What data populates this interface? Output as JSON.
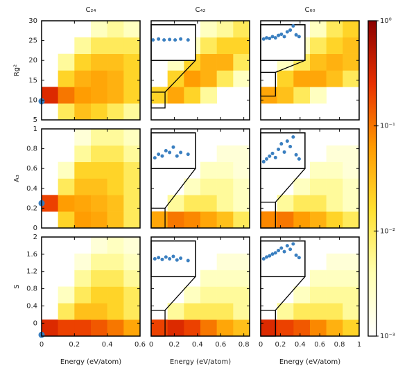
{
  "chart_data": {
    "type": "heatmap",
    "xlabel": "Energy (eV/atom)",
    "colormap": [
      "#ffffff",
      "#ffffb0",
      "#ffe030",
      "#ff9a00",
      "#e83000",
      "#8b0000"
    ],
    "point_color": "#3a7fc0",
    "colorbar": {
      "log": true,
      "lim": [
        0.001,
        1
      ],
      "ticks": [
        {
          "value": 1,
          "label": "10⁰"
        },
        {
          "value": 0.1,
          "label": "10⁻¹"
        },
        {
          "value": 0.01,
          "label": "10⁻²"
        },
        {
          "value": 0.001,
          "label": "10⁻³"
        }
      ]
    },
    "columns": [
      {
        "title": "C₂₄",
        "xlim": [
          0,
          0.6
        ],
        "xticks": [
          0,
          0.2,
          0.4,
          0.6
        ]
      },
      {
        "title": "C₄₂",
        "xlim": [
          0,
          0.85
        ],
        "xticks": [
          0,
          0.2,
          0.4,
          0.6,
          0.8
        ]
      },
      {
        "title": "C₆₀",
        "xlim": [
          0,
          1
        ],
        "xticks": [
          0,
          0.2,
          0.4,
          0.6,
          0.8,
          1
        ]
      }
    ],
    "rows": [
      {
        "ylabel": "Rg²",
        "ylim": [
          5,
          30
        ],
        "yticks": [
          5,
          10,
          15,
          20,
          25,
          30
        ],
        "panels": [
          {
            "z": [
              [
                null,
                0.01,
                0.03,
                0.02,
                0.01,
                0.005
              ],
              [
                0.3,
                0.1,
                0.06,
                0.05,
                0.04,
                0.02
              ],
              [
                null,
                0.02,
                0.04,
                0.05,
                0.04,
                0.02
              ],
              [
                null,
                0.005,
                0.02,
                0.03,
                0.03,
                0.02
              ],
              [
                null,
                null,
                0.005,
                0.01,
                0.01,
                0.01
              ],
              [
                null,
                null,
                null,
                0.003,
                0.005,
                0.003
              ]
            ],
            "points": [
              [
                0,
                9.7
              ]
            ]
          },
          {
            "z": [
              [
                null,
                null,
                null,
                null,
                null,
                null
              ],
              [
                0.02,
                0.05,
                0.02,
                0.005,
                null,
                null
              ],
              [
                null,
                0.02,
                0.06,
                0.04,
                0.01,
                0.003
              ],
              [
                null,
                0.003,
                0.02,
                0.04,
                0.04,
                0.01
              ],
              [
                null,
                null,
                0.003,
                0.01,
                0.02,
                0.02
              ],
              [
                null,
                null,
                null,
                0.003,
                0.005,
                0.01
              ]
            ],
            "points": [],
            "inset": {
              "xlim": [
                0,
                0.12
              ],
              "ylim": [
                8,
                12
              ],
              "points": [
                [
                  0.005,
                  10.3
                ],
                [
                  0.02,
                  10.4
                ],
                [
                  0.035,
                  10.3
                ],
                [
                  0.05,
                  10.35
                ],
                [
                  0.065,
                  10.3
                ],
                [
                  0.08,
                  10.4
                ],
                [
                  0.1,
                  10.3
                ]
              ]
            }
          },
          {
            "z": [
              [
                null,
                null,
                null,
                null,
                null,
                null
              ],
              [
                0.05,
                0.03,
                0.01,
                0.003,
                null,
                null
              ],
              [
                null,
                0.02,
                0.05,
                0.05,
                0.03,
                0.01
              ],
              [
                null,
                0.003,
                0.01,
                0.03,
                0.04,
                0.03
              ],
              [
                null,
                null,
                0.003,
                0.01,
                0.02,
                0.03
              ],
              [
                null,
                null,
                null,
                0.003,
                0.01,
                0.02
              ]
            ],
            "points": [],
            "inset": {
              "xlim": [
                0,
                0.15
              ],
              "ylim": [
                11,
                17
              ],
              "points": [
                [
                  0.01,
                  14.6
                ],
                [
                  0.02,
                  14.8
                ],
                [
                  0.03,
                  14.7
                ],
                [
                  0.04,
                  15.0
                ],
                [
                  0.05,
                  14.8
                ],
                [
                  0.06,
                  15.2
                ],
                [
                  0.07,
                  15.4
                ],
                [
                  0.08,
                  15.0
                ],
                [
                  0.09,
                  15.8
                ],
                [
                  0.1,
                  16.1
                ],
                [
                  0.11,
                  16.8
                ],
                [
                  0.12,
                  15.3
                ],
                [
                  0.13,
                  15.0
                ]
              ]
            }
          }
        ]
      },
      {
        "ylabel": "A₃",
        "ylim": [
          0,
          1
        ],
        "yticks": [
          0,
          0.2,
          0.4,
          0.6,
          0.8,
          1
        ],
        "panels": [
          {
            "z": [
              [
                null,
                0.02,
                0.06,
                0.05,
                0.03,
                0.01
              ],
              [
                0.2,
                0.06,
                0.05,
                0.04,
                0.03,
                0.01
              ],
              [
                null,
                0.01,
                0.03,
                0.03,
                0.02,
                0.01
              ],
              [
                null,
                0.003,
                0.02,
                0.02,
                0.02,
                0.01
              ],
              [
                null,
                null,
                0.005,
                0.01,
                0.01,
                0.005
              ],
              [
                null,
                null,
                0.002,
                0.005,
                0.005,
                0.003
              ]
            ],
            "points": [
              [
                0,
                0.25
              ]
            ]
          },
          {
            "z": [
              [
                0.05,
                0.1,
                0.08,
                0.05,
                0.03,
                0.01
              ],
              [
                null,
                0.005,
                0.01,
                0.01,
                0.005,
                0.003
              ],
              [
                null,
                null,
                0.003,
                0.005,
                0.005,
                0.003
              ],
              [
                null,
                null,
                null,
                0.003,
                0.003,
                0.002
              ],
              [
                null,
                null,
                null,
                null,
                0.002,
                0.002
              ],
              [
                null,
                null,
                null,
                null,
                null,
                null
              ]
            ],
            "points": [],
            "inset": {
              "xlim": [
                0,
                0.12
              ],
              "ylim": [
                0,
                0.2
              ],
              "points": [
                [
                  0.01,
                  0.06
                ],
                [
                  0.02,
                  0.08
                ],
                [
                  0.03,
                  0.07
                ],
                [
                  0.04,
                  0.1
                ],
                [
                  0.05,
                  0.09
                ],
                [
                  0.06,
                  0.12
                ],
                [
                  0.07,
                  0.07
                ],
                [
                  0.08,
                  0.09
                ],
                [
                  0.1,
                  0.08
                ]
              ]
            }
          },
          {
            "z": [
              [
                0.08,
                0.1,
                0.06,
                0.04,
                0.02,
                0.01
              ],
              [
                null,
                0.005,
                0.01,
                0.01,
                0.005,
                0.003
              ],
              [
                null,
                null,
                0.003,
                0.005,
                0.005,
                0.003
              ],
              [
                null,
                null,
                null,
                0.003,
                0.003,
                0.002
              ],
              [
                null,
                null,
                null,
                null,
                0.002,
                0.002
              ],
              [
                null,
                null,
                null,
                null,
                null,
                null
              ]
            ],
            "points": [],
            "inset": {
              "xlim": [
                0,
                0.15
              ],
              "ylim": [
                0,
                0.26
              ],
              "points": [
                [
                  0.01,
                  0.05
                ],
                [
                  0.02,
                  0.07
                ],
                [
                  0.03,
                  0.09
                ],
                [
                  0.04,
                  0.11
                ],
                [
                  0.05,
                  0.08
                ],
                [
                  0.06,
                  0.14
                ],
                [
                  0.07,
                  0.18
                ],
                [
                  0.08,
                  0.12
                ],
                [
                  0.09,
                  0.2
                ],
                [
                  0.1,
                  0.16
                ],
                [
                  0.11,
                  0.23
                ],
                [
                  0.12,
                  0.1
                ],
                [
                  0.13,
                  0.07
                ]
              ]
            }
          }
        ]
      },
      {
        "ylabel": "S",
        "ylim": [
          -0.3,
          2
        ],
        "yticks": [
          0,
          0.4,
          0.8,
          1.2,
          1.6,
          2
        ],
        "panels": [
          {
            "z": [
              [
                0.3,
                0.2,
                0.2,
                0.15,
                0.1,
                0.05
              ],
              [
                null,
                0.01,
                0.03,
                0.03,
                0.02,
                0.01
              ],
              [
                null,
                0.003,
                0.01,
                0.02,
                0.02,
                0.01
              ],
              [
                null,
                null,
                0.005,
                0.01,
                0.01,
                0.005
              ],
              [
                null,
                null,
                0.002,
                0.005,
                0.005,
                0.003
              ],
              [
                null,
                null,
                null,
                0.002,
                0.003,
                0.002
              ]
            ],
            "points": [
              [
                0,
                -0.27
              ]
            ]
          },
          {
            "z": [
              [
                0.2,
                0.3,
                0.2,
                0.1,
                0.05,
                0.03
              ],
              [
                null,
                0.005,
                0.01,
                0.01,
                0.01,
                0.005
              ],
              [
                null,
                null,
                0.003,
                0.005,
                0.005,
                0.005
              ],
              [
                null,
                null,
                null,
                0.003,
                0.003,
                0.003
              ],
              [
                null,
                null,
                null,
                null,
                0.002,
                0.002
              ],
              [
                null,
                null,
                null,
                null,
                null,
                null
              ]
            ],
            "points": [],
            "inset": {
              "xlim": [
                0,
                0.12
              ],
              "ylim": [
                -0.3,
                0.3
              ],
              "points": [
                [
                  0.01,
                  0.0
                ],
                [
                  0.02,
                  0.02
                ],
                [
                  0.03,
                  -0.01
                ],
                [
                  0.04,
                  0.03
                ],
                [
                  0.05,
                  0.0
                ],
                [
                  0.06,
                  0.04
                ],
                [
                  0.07,
                  -0.02
                ],
                [
                  0.08,
                  0.01
                ],
                [
                  0.1,
                  -0.03
                ]
              ]
            }
          },
          {
            "z": [
              [
                0.3,
                0.2,
                0.15,
                0.08,
                0.04,
                0.02
              ],
              [
                null,
                0.005,
                0.01,
                0.01,
                0.01,
                0.005
              ],
              [
                null,
                null,
                0.003,
                0.005,
                0.005,
                0.005
              ],
              [
                null,
                null,
                null,
                0.003,
                0.003,
                0.003
              ],
              [
                null,
                null,
                null,
                null,
                0.002,
                0.002
              ],
              [
                null,
                null,
                null,
                null,
                null,
                null
              ]
            ],
            "points": [],
            "inset": {
              "xlim": [
                0,
                0.15
              ],
              "ylim": [
                -0.3,
                0.3
              ],
              "points": [
                [
                  0.01,
                  0.0
                ],
                [
                  0.02,
                  0.03
                ],
                [
                  0.03,
                  0.05
                ],
                [
                  0.04,
                  0.08
                ],
                [
                  0.05,
                  0.1
                ],
                [
                  0.06,
                  0.14
                ],
                [
                  0.07,
                  0.18
                ],
                [
                  0.08,
                  0.12
                ],
                [
                  0.09,
                  0.22
                ],
                [
                  0.1,
                  0.16
                ],
                [
                  0.11,
                  0.25
                ],
                [
                  0.12,
                  0.06
                ],
                [
                  0.13,
                  0.02
                ]
              ]
            }
          }
        ]
      }
    ]
  }
}
